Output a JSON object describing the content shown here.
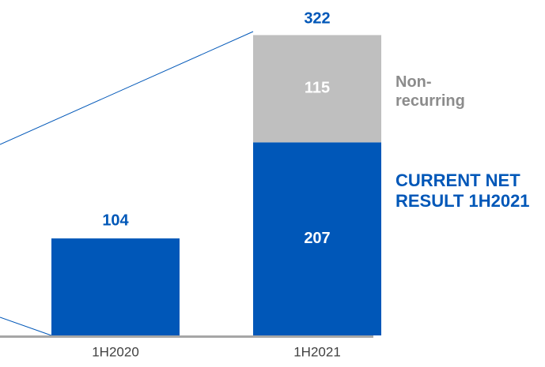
{
  "chart_data": {
    "type": "stacked_bar",
    "categories": [
      "1H2020",
      "1H2021"
    ],
    "series": [
      {
        "name": "CURRENT NET RESULT 1H2021",
        "color": "#0057b8",
        "values": [
          104,
          207
        ]
      },
      {
        "name": "Non-recurring",
        "color": "#bfbfbf",
        "values": [
          null,
          115
        ]
      }
    ],
    "totals": [
      null,
      322
    ],
    "ylim": [
      0,
      330
    ]
  }
}
